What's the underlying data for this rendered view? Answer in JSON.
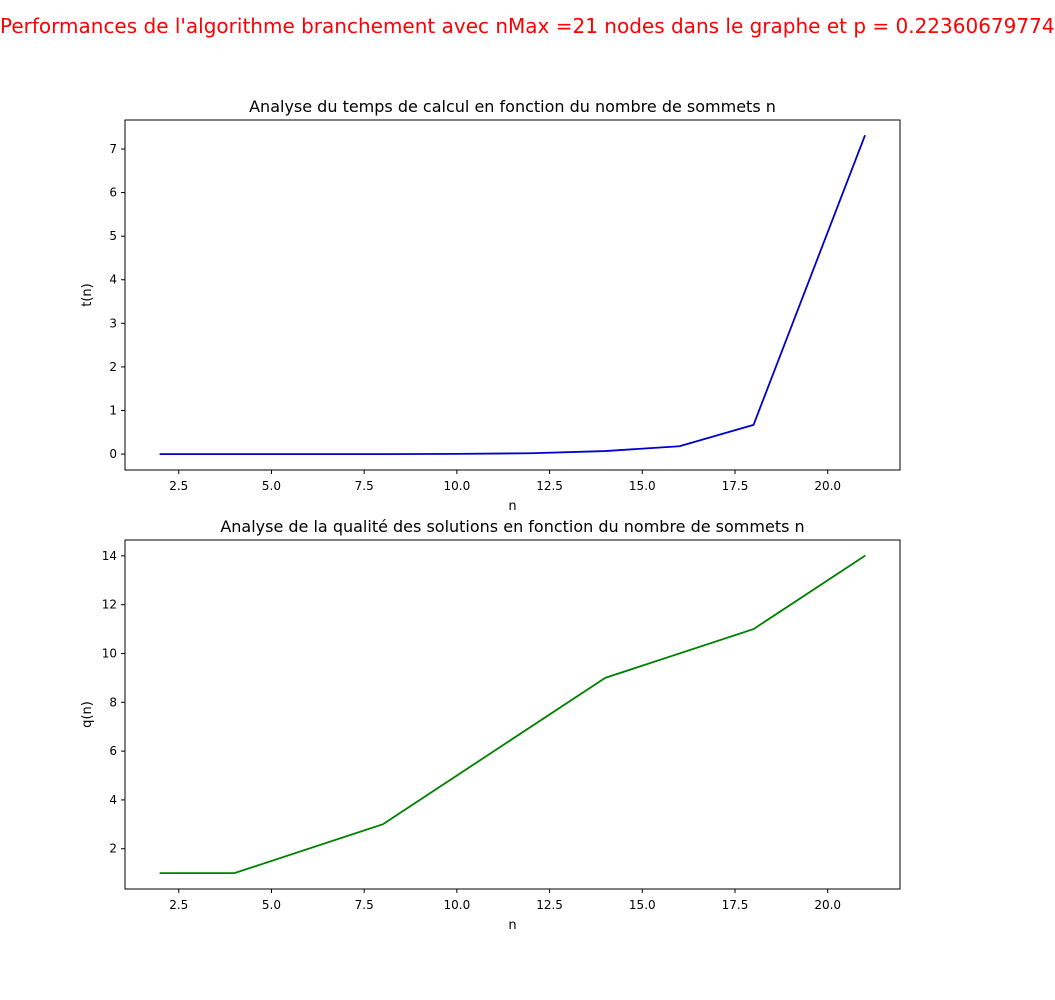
{
  "suptitle": "Performances de l'algorithme branchement avec nMax =21 nodes dans le graphe et p = 0.22360679774",
  "chart_data": [
    {
      "type": "line",
      "title": "Analyse du temps de calcul en fonction du nombre de sommets n",
      "xlabel": "n",
      "ylabel": "t(n)",
      "xlim": [
        1.05,
        21.95
      ],
      "ylim": [
        -0.365,
        7.665
      ],
      "xticks": [
        2.5,
        5.0,
        7.5,
        10.0,
        12.5,
        15.0,
        17.5,
        20.0
      ],
      "xtick_labels": [
        "2.5",
        "5.0",
        "7.5",
        "10.0",
        "12.5",
        "15.0",
        "17.5",
        "20.0"
      ],
      "yticks": [
        0,
        1,
        2,
        3,
        4,
        5,
        6,
        7
      ],
      "ytick_labels": [
        "0",
        "1",
        "2",
        "3",
        "4",
        "5",
        "6",
        "7"
      ],
      "color": "#0000cc",
      "series": [
        {
          "x": [
            2,
            4,
            6,
            8,
            10,
            12,
            14,
            16,
            18,
            21
          ],
          "y": [
            0.0,
            0.0,
            0.0,
            0.0,
            0.005,
            0.02,
            0.07,
            0.18,
            0.67,
            7.3
          ]
        }
      ]
    },
    {
      "type": "line",
      "title": "Analyse de la qualité des solutions en fonction du nombre de sommets n",
      "xlabel": "n",
      "ylabel": "q(n)",
      "xlim": [
        1.05,
        21.95
      ],
      "ylim": [
        0.35,
        14.65
      ],
      "xticks": [
        2.5,
        5.0,
        7.5,
        10.0,
        12.5,
        15.0,
        17.5,
        20.0
      ],
      "xtick_labels": [
        "2.5",
        "5.0",
        "7.5",
        "10.0",
        "12.5",
        "15.0",
        "17.5",
        "20.0"
      ],
      "yticks": [
        2,
        4,
        6,
        8,
        10,
        12,
        14
      ],
      "ytick_labels": [
        "2",
        "4",
        "6",
        "8",
        "10",
        "12",
        "14"
      ],
      "color": "#008000",
      "series": [
        {
          "x": [
            2,
            4,
            8,
            14,
            18,
            21
          ],
          "y": [
            1,
            1,
            3,
            9,
            11,
            14
          ]
        }
      ]
    }
  ]
}
